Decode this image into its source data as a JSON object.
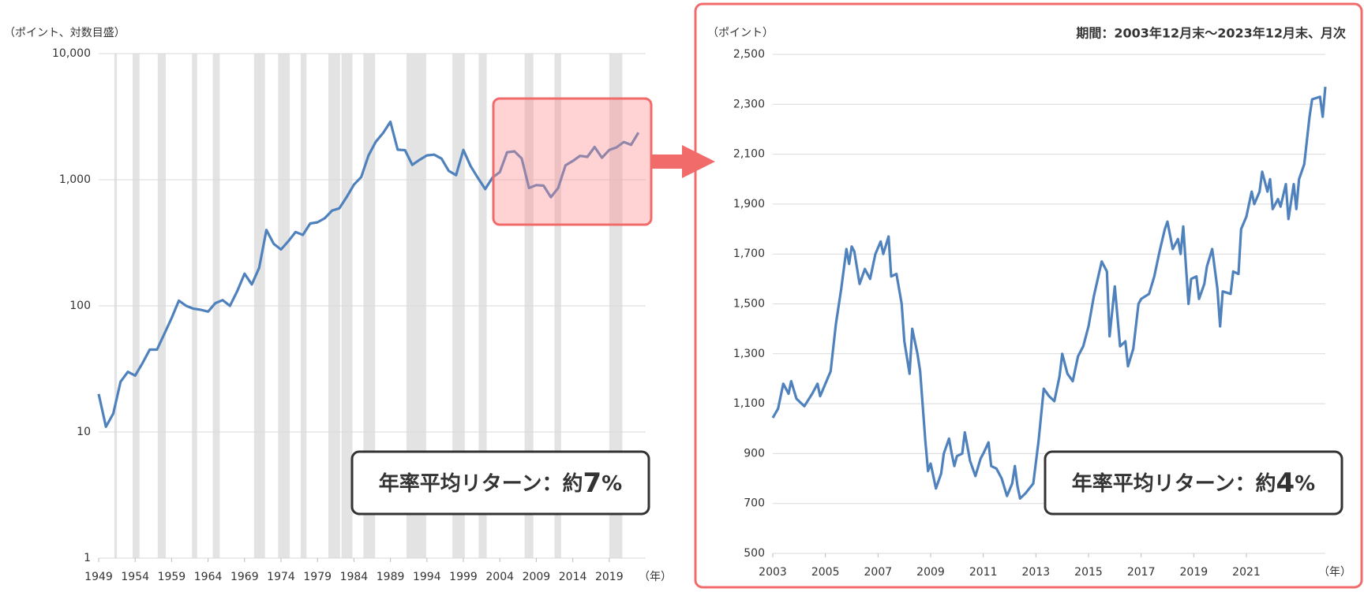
{
  "chart_data": [
    {
      "type": "line",
      "log_scale": true,
      "grid": true,
      "y_label": "（ポイント、対数目盛）",
      "x_unit": "（年）",
      "annotation": [
        "年率平均リターン：約",
        "7",
        "%"
      ],
      "xlim": [
        1949,
        2024
      ],
      "xticks": [
        1949,
        1954,
        1959,
        1964,
        1969,
        1974,
        1979,
        1984,
        1989,
        1994,
        1999,
        2004,
        2009,
        2014,
        2019
      ],
      "ylim": [
        1,
        10000
      ],
      "yticks": [
        1,
        10,
        100,
        {
          "value": 1000,
          "label": "1,000"
        },
        {
          "value": 10000,
          "label": "10,000"
        }
      ],
      "shaded_color": "#e3e3e3",
      "shaded_periods": [
        [
          1951.15,
          1951.5
        ],
        [
          1953.66,
          1954.6
        ],
        [
          1957.1,
          1958.2
        ],
        [
          1961.8,
          1962.5
        ],
        [
          1964.65,
          1965.6
        ],
        [
          1970.3,
          1971.8
        ],
        [
          1973.6,
          1975.2
        ],
        [
          1976.7,
          1977.5
        ],
        [
          1980.5,
          1982.1
        ],
        [
          1982.3,
          1983.8
        ],
        [
          1985.3,
          1986.9
        ],
        [
          1991.2,
          1993.9
        ],
        [
          1997.5,
          1999.2
        ],
        [
          2001.1,
          2002.2
        ],
        [
          2007.4,
          2008.6
        ],
        [
          2011.5,
          2012.4
        ],
        [
          2019.0,
          2020.8
        ]
      ],
      "series": [
        {
          "color": "#4f81bd",
          "x": [
            1949,
            1950,
            1951,
            1952,
            1953,
            1954,
            1955,
            1956,
            1957,
            1958,
            1959,
            1960,
            1961,
            1962,
            1963,
            1964,
            1965,
            1966,
            1967,
            1968,
            1969,
            1970,
            1971,
            1972,
            1973,
            1974,
            1975,
            1976,
            1977,
            1978,
            1979,
            1980,
            1981,
            1982,
            1983,
            1984,
            1985,
            1986,
            1987,
            1988,
            1989,
            1990,
            1991,
            1992,
            1993,
            1994,
            1995,
            1996,
            1997,
            1998,
            1999,
            2000,
            2001,
            2002,
            2003,
            2004,
            2005,
            2006,
            2007,
            2008,
            2009,
            2010,
            2011,
            2012,
            2013,
            2014,
            2015,
            2016,
            2017,
            2018,
            2019,
            2020,
            2021,
            2022,
            2023
          ],
          "values": [
            20,
            11,
            14,
            25,
            30,
            28,
            35,
            45,
            45,
            60,
            80,
            110,
            100,
            95,
            93,
            90,
            105,
            111,
            100,
            131,
            180,
            148,
            200,
            400,
            310,
            280,
            325,
            385,
            365,
            450,
            460,
            495,
            570,
            593,
            730,
            915,
            1050,
            1560,
            2000,
            2350,
            2880,
            1730,
            1715,
            1310,
            1440,
            1560,
            1580,
            1470,
            1175,
            1087,
            1722,
            1283,
            1032,
            843,
            1043,
            1150,
            1650,
            1680,
            1475,
            860,
            907,
            898,
            728,
            860,
            1302,
            1407,
            1547,
            1518,
            1817,
            1494,
            1721,
            1805,
            1992,
            1892,
            2366
          ]
        }
      ]
    },
    {
      "type": "line",
      "log_scale": false,
      "grid": true,
      "y_label": "（ポイント）",
      "x_unit": "（年）",
      "subtitle": "期間：2003年12月末～2023年12月末、月次",
      "annotation": [
        "年率平均リターン：約",
        "4",
        "%"
      ],
      "xlim": [
        2003,
        2024
      ],
      "xticks": [
        2003,
        2005,
        2007,
        2009,
        2011,
        2013,
        2015,
        2017,
        2019,
        2021
      ],
      "ylim": [
        500,
        2500
      ],
      "yticks": [
        500,
        700,
        900,
        {
          "value": 1100,
          "label": "1,100"
        },
        {
          "value": 1300,
          "label": "1,300"
        },
        {
          "value": 1500,
          "label": "1,500"
        },
        {
          "value": 1700,
          "label": "1,700"
        },
        {
          "value": 1900,
          "label": "1,900"
        },
        {
          "value": 2100,
          "label": "2,100"
        },
        {
          "value": 2300,
          "label": "2,300"
        },
        {
          "value": 2500,
          "label": "2,500"
        }
      ],
      "series": [
        {
          "color": "#4f81bd",
          "x": [
            2003.0,
            2003.2,
            2003.4,
            2003.6,
            2003.7,
            2003.9,
            2004.2,
            2004.5,
            2004.7,
            2004.8,
            2005.2,
            2005.4,
            2005.6,
            2005.8,
            2005.9,
            2006.0,
            2006.1,
            2006.3,
            2006.5,
            2006.7,
            2006.9,
            2007.1,
            2007.2,
            2007.4,
            2007.5,
            2007.7,
            2007.9,
            2008.0,
            2008.2,
            2008.3,
            2008.5,
            2008.6,
            2008.8,
            2008.9,
            2009.0,
            2009.2,
            2009.4,
            2009.5,
            2009.7,
            2009.8,
            2009.9,
            2010.0,
            2010.2,
            2010.3,
            2010.5,
            2010.7,
            2010.9,
            2011.0,
            2011.2,
            2011.3,
            2011.5,
            2011.7,
            2011.9,
            2012.1,
            2012.2,
            2012.3,
            2012.4,
            2012.6,
            2012.9,
            2013.1,
            2013.3,
            2013.5,
            2013.7,
            2013.9,
            2014.0,
            2014.2,
            2014.4,
            2014.6,
            2014.8,
            2015.0,
            2015.2,
            2015.5,
            2015.7,
            2015.8,
            2016.0,
            2016.2,
            2016.4,
            2016.5,
            2016.7,
            2016.9,
            2017.0,
            2017.3,
            2017.5,
            2017.7,
            2017.9,
            2018.0,
            2018.2,
            2018.4,
            2018.5,
            2018.6,
            2018.8,
            2018.9,
            2019.1,
            2019.2,
            2019.4,
            2019.5,
            2019.7,
            2019.9,
            2020.0,
            2020.1,
            2020.4,
            2020.5,
            2020.7,
            2020.8,
            2021.0,
            2021.2,
            2021.3,
            2021.5,
            2021.6,
            2021.8,
            2021.9,
            2022.0,
            2022.2,
            2022.3,
            2022.5,
            2022.6,
            2022.8,
            2022.9,
            2023.0,
            2023.2,
            2023.4,
            2023.5,
            2023.8,
            2023.9,
            2024.0
          ],
          "values": [
            1043,
            1080,
            1180,
            1140,
            1190,
            1120,
            1090,
            1140,
            1180,
            1130,
            1230,
            1420,
            1560,
            1720,
            1660,
            1730,
            1710,
            1580,
            1640,
            1600,
            1700,
            1750,
            1700,
            1770,
            1610,
            1620,
            1500,
            1350,
            1220,
            1400,
            1300,
            1230,
            950,
            830,
            860,
            760,
            820,
            900,
            960,
            900,
            850,
            890,
            900,
            985,
            870,
            810,
            880,
            900,
            945,
            850,
            840,
            800,
            730,
            780,
            850,
            770,
            720,
            740,
            780,
            950,
            1160,
            1130,
            1110,
            1210,
            1300,
            1220,
            1190,
            1290,
            1330,
            1410,
            1530,
            1670,
            1630,
            1370,
            1570,
            1330,
            1350,
            1250,
            1320,
            1500,
            1520,
            1540,
            1610,
            1710,
            1800,
            1830,
            1720,
            1760,
            1700,
            1810,
            1500,
            1600,
            1610,
            1520,
            1580,
            1650,
            1720,
            1560,
            1410,
            1550,
            1540,
            1630,
            1620,
            1800,
            1850,
            1950,
            1900,
            1950,
            2030,
            1950,
            2000,
            1880,
            1920,
            1890,
            1980,
            1840,
            1980,
            1880,
            2000,
            2060,
            2250,
            2320,
            2330,
            2250,
            2370
          ]
        }
      ]
    }
  ]
}
